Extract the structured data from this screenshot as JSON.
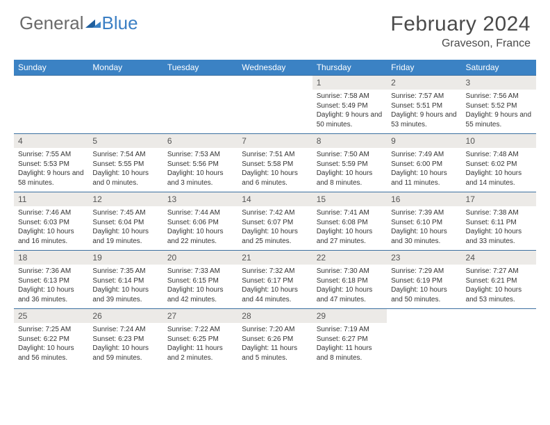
{
  "logo": {
    "part1": "General",
    "part2": "Blue"
  },
  "title": "February 2024",
  "location": "Graveson, France",
  "colors": {
    "header_bg": "#3b82c4",
    "header_text": "#ffffff",
    "daynum_bg": "#eceae7",
    "border": "#3b6fa0",
    "logo_gray": "#6a6a6a",
    "logo_blue": "#3b7fc4"
  },
  "weekdays": [
    "Sunday",
    "Monday",
    "Tuesday",
    "Wednesday",
    "Thursday",
    "Friday",
    "Saturday"
  ],
  "weeks": [
    [
      null,
      null,
      null,
      null,
      {
        "n": "1",
        "sr": "7:58 AM",
        "ss": "5:49 PM",
        "dl": "9 hours and 50 minutes."
      },
      {
        "n": "2",
        "sr": "7:57 AM",
        "ss": "5:51 PM",
        "dl": "9 hours and 53 minutes."
      },
      {
        "n": "3",
        "sr": "7:56 AM",
        "ss": "5:52 PM",
        "dl": "9 hours and 55 minutes."
      }
    ],
    [
      {
        "n": "4",
        "sr": "7:55 AM",
        "ss": "5:53 PM",
        "dl": "9 hours and 58 minutes."
      },
      {
        "n": "5",
        "sr": "7:54 AM",
        "ss": "5:55 PM",
        "dl": "10 hours and 0 minutes."
      },
      {
        "n": "6",
        "sr": "7:53 AM",
        "ss": "5:56 PM",
        "dl": "10 hours and 3 minutes."
      },
      {
        "n": "7",
        "sr": "7:51 AM",
        "ss": "5:58 PM",
        "dl": "10 hours and 6 minutes."
      },
      {
        "n": "8",
        "sr": "7:50 AM",
        "ss": "5:59 PM",
        "dl": "10 hours and 8 minutes."
      },
      {
        "n": "9",
        "sr": "7:49 AM",
        "ss": "6:00 PM",
        "dl": "10 hours and 11 minutes."
      },
      {
        "n": "10",
        "sr": "7:48 AM",
        "ss": "6:02 PM",
        "dl": "10 hours and 14 minutes."
      }
    ],
    [
      {
        "n": "11",
        "sr": "7:46 AM",
        "ss": "6:03 PM",
        "dl": "10 hours and 16 minutes."
      },
      {
        "n": "12",
        "sr": "7:45 AM",
        "ss": "6:04 PM",
        "dl": "10 hours and 19 minutes."
      },
      {
        "n": "13",
        "sr": "7:44 AM",
        "ss": "6:06 PM",
        "dl": "10 hours and 22 minutes."
      },
      {
        "n": "14",
        "sr": "7:42 AM",
        "ss": "6:07 PM",
        "dl": "10 hours and 25 minutes."
      },
      {
        "n": "15",
        "sr": "7:41 AM",
        "ss": "6:08 PM",
        "dl": "10 hours and 27 minutes."
      },
      {
        "n": "16",
        "sr": "7:39 AM",
        "ss": "6:10 PM",
        "dl": "10 hours and 30 minutes."
      },
      {
        "n": "17",
        "sr": "7:38 AM",
        "ss": "6:11 PM",
        "dl": "10 hours and 33 minutes."
      }
    ],
    [
      {
        "n": "18",
        "sr": "7:36 AM",
        "ss": "6:13 PM",
        "dl": "10 hours and 36 minutes."
      },
      {
        "n": "19",
        "sr": "7:35 AM",
        "ss": "6:14 PM",
        "dl": "10 hours and 39 minutes."
      },
      {
        "n": "20",
        "sr": "7:33 AM",
        "ss": "6:15 PM",
        "dl": "10 hours and 42 minutes."
      },
      {
        "n": "21",
        "sr": "7:32 AM",
        "ss": "6:17 PM",
        "dl": "10 hours and 44 minutes."
      },
      {
        "n": "22",
        "sr": "7:30 AM",
        "ss": "6:18 PM",
        "dl": "10 hours and 47 minutes."
      },
      {
        "n": "23",
        "sr": "7:29 AM",
        "ss": "6:19 PM",
        "dl": "10 hours and 50 minutes."
      },
      {
        "n": "24",
        "sr": "7:27 AM",
        "ss": "6:21 PM",
        "dl": "10 hours and 53 minutes."
      }
    ],
    [
      {
        "n": "25",
        "sr": "7:25 AM",
        "ss": "6:22 PM",
        "dl": "10 hours and 56 minutes."
      },
      {
        "n": "26",
        "sr": "7:24 AM",
        "ss": "6:23 PM",
        "dl": "10 hours and 59 minutes."
      },
      {
        "n": "27",
        "sr": "7:22 AM",
        "ss": "6:25 PM",
        "dl": "11 hours and 2 minutes."
      },
      {
        "n": "28",
        "sr": "7:20 AM",
        "ss": "6:26 PM",
        "dl": "11 hours and 5 minutes."
      },
      {
        "n": "29",
        "sr": "7:19 AM",
        "ss": "6:27 PM",
        "dl": "11 hours and 8 minutes."
      },
      null,
      null
    ]
  ],
  "labels": {
    "sunrise": "Sunrise: ",
    "sunset": "Sunset: ",
    "daylight": "Daylight: "
  }
}
